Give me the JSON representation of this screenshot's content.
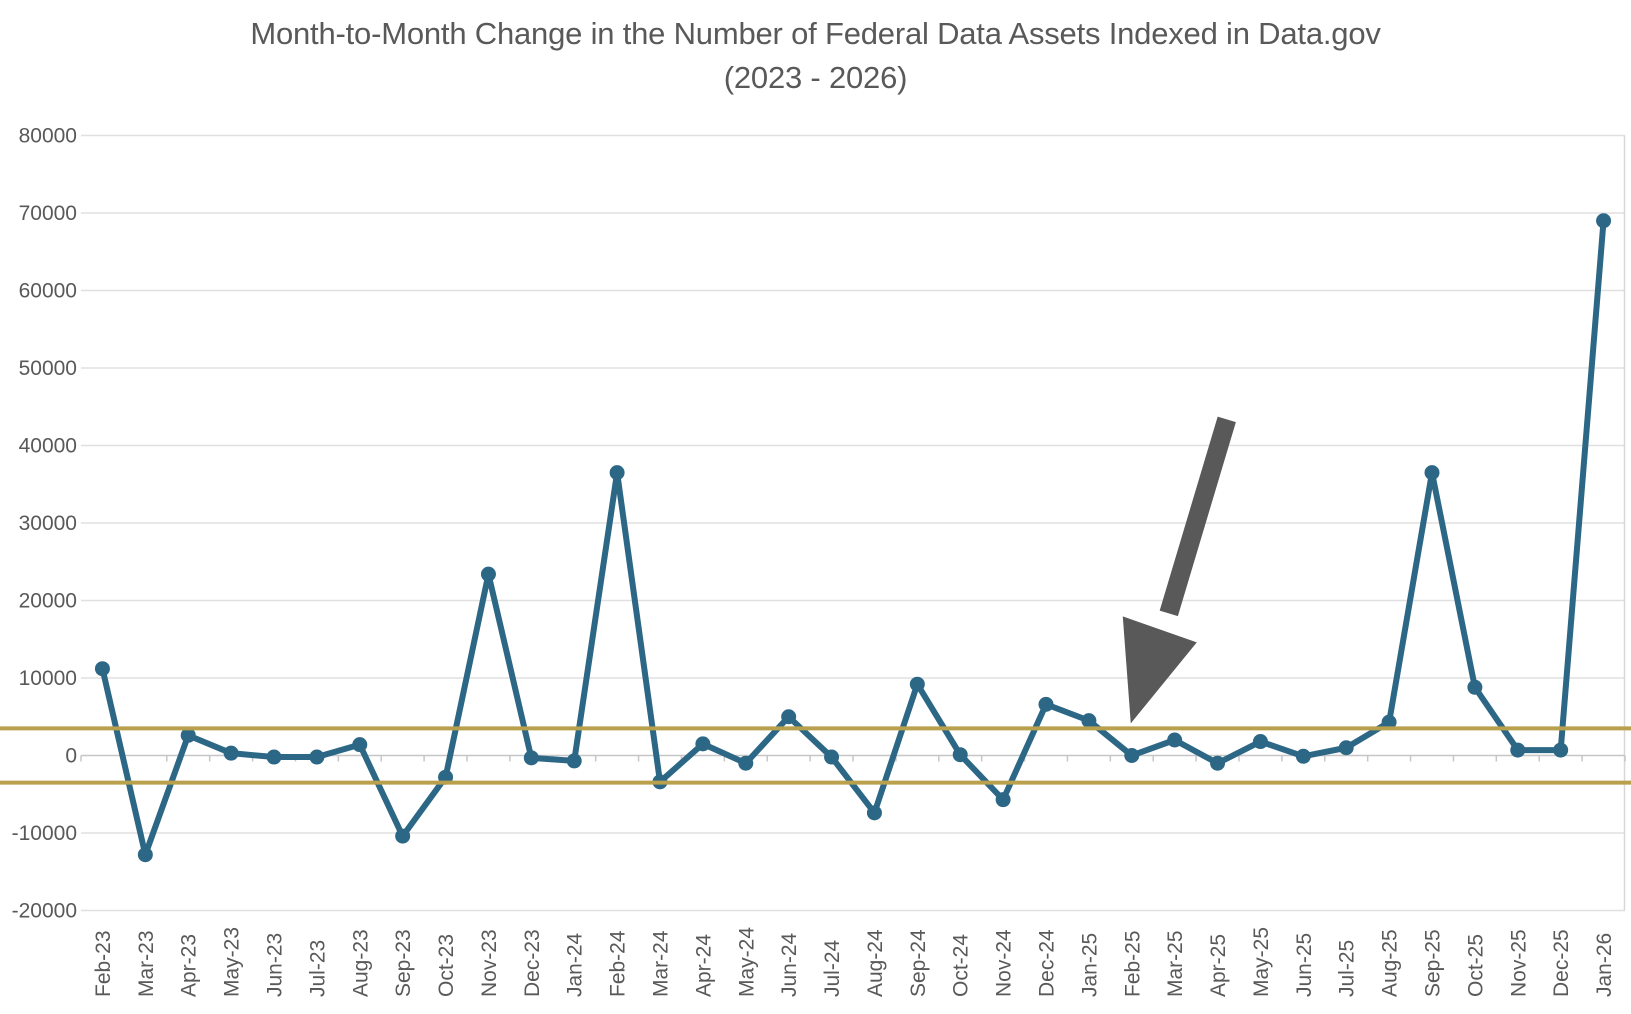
{
  "page": {
    "background": "#ffffff"
  },
  "chart": {
    "title_line1": "Month-to-Month Change in the Number of Federal Data Assets Indexed in Data.gov",
    "title_line2": "(2023 - 2026)"
  },
  "chart_data": {
    "type": "line",
    "title": "Month-to-Month Change in the Number of Federal Data Assets Indexed in Data.gov (2023 - 2026)",
    "xlabel": "",
    "ylabel": "",
    "ylim": [
      -20000,
      80000
    ],
    "ytick_step": 10000,
    "ytick_labels": [
      "80000",
      "70000",
      "60000",
      "50000",
      "40000",
      "30000",
      "20000",
      "10000",
      "0",
      "-10000",
      "-20000"
    ],
    "grid": true,
    "legend": "none",
    "categories": [
      "Feb-23",
      "Mar-23",
      "Apr-23",
      "May-23",
      "Jun-23",
      "Jul-23",
      "Aug-23",
      "Sep-23",
      "Oct-23",
      "Nov-23",
      "Dec-23",
      "Jan-24",
      "Feb-24",
      "Mar-24",
      "Apr-24",
      "May-24",
      "Jun-24",
      "Jul-24",
      "Aug-24",
      "Sep-24",
      "Oct-24",
      "Nov-24",
      "Dec-24",
      "Jan-25",
      "Feb-25",
      "Mar-25",
      "Apr-25",
      "May-25",
      "Jun-25",
      "Jul-25",
      "Aug-25",
      "Sep-25",
      "Oct-25",
      "Nov-25",
      "Dec-25",
      "Jan-26"
    ],
    "series": [
      {
        "color": "#2d6786",
        "values": [
          11200,
          -12800,
          2600,
          300,
          -200,
          -200,
          1400,
          -10400,
          -2800,
          23400,
          -300,
          -700,
          36500,
          -3400,
          1500,
          -1000,
          5000,
          -200,
          -7400,
          9200,
          100,
          -5700,
          6600,
          4500,
          0,
          2000,
          -1000,
          1800,
          -100,
          1000,
          4300,
          36500,
          8800,
          700,
          700,
          69000
        ]
      }
    ],
    "reference_lines": [
      {
        "name": "upper-threshold",
        "value": 3500,
        "color": "#b8a04c"
      },
      {
        "name": "lower-threshold",
        "value": -3500,
        "color": "#b8a04c"
      }
    ],
    "annotation": {
      "type": "arrow",
      "target_category": "Feb-25",
      "color": "#595959"
    }
  },
  "style": {
    "text_color": "#595959",
    "gridline_color": "#e0e0e0",
    "axis_color": "#c6c6c6",
    "plot_border_color": "#d8d8d8"
  }
}
